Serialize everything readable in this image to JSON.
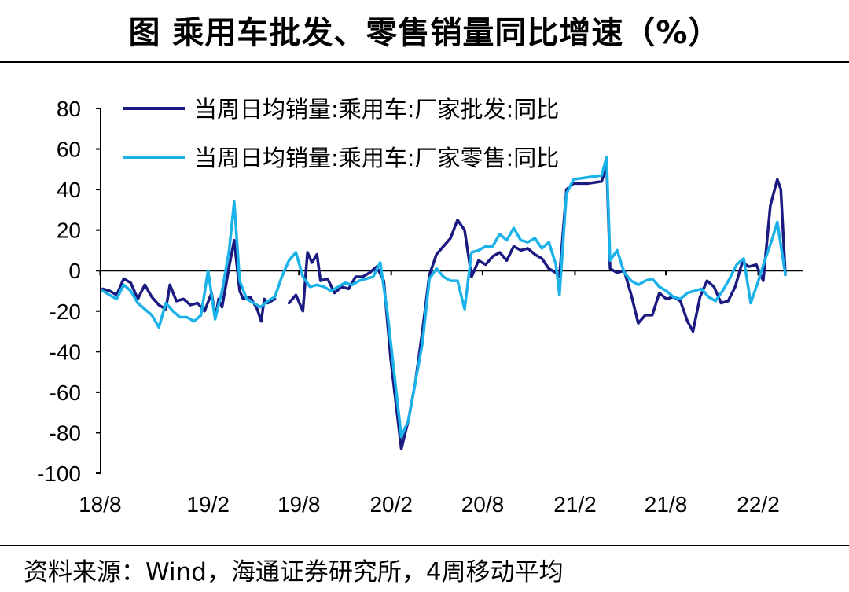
{
  "title": "图  乘用车批发、零售销量同比增速（%）",
  "source": "资料来源：Wind，海通证券研究所，4周移动平均",
  "colors": {
    "wholesale": "#1a1a80",
    "retail": "#1ab2e8",
    "axis": "#000000"
  },
  "chart_data": {
    "type": "line",
    "ylim": [
      -100,
      80
    ],
    "yticks": [
      80,
      60,
      40,
      20,
      0,
      -20,
      -40,
      -60,
      -80,
      -100
    ],
    "xlim": [
      "2018-07-16",
      "2022-05-16"
    ],
    "xticks": [
      {
        "label": "18/8",
        "date": "2018-07-15"
      },
      {
        "label": "19/2",
        "date": "2019-02-15"
      },
      {
        "label": "19/8",
        "date": "2019-08-15"
      },
      {
        "label": "20/2",
        "date": "2020-02-15"
      },
      {
        "label": "20/8",
        "date": "2020-08-15"
      },
      {
        "label": "21/2",
        "date": "2021-02-15"
      },
      {
        "label": "21/8",
        "date": "2021-08-15"
      },
      {
        "label": "22/2",
        "date": "2022-02-15"
      }
    ],
    "legend_position": "top-left",
    "grid": false,
    "series": [
      {
        "name": "当周日均销量:乘用车:厂家批发:同比",
        "color": "#1a1a80",
        "segments": [
          [
            [
              "2018-07-20",
              -9
            ],
            [
              "2018-08-03",
              -10
            ],
            [
              "2018-08-17",
              -12
            ],
            [
              "2018-08-31",
              -4
            ],
            [
              "2018-09-14",
              -6
            ],
            [
              "2018-09-28",
              -14
            ],
            [
              "2018-10-12",
              -7
            ],
            [
              "2018-10-26",
              -13
            ],
            [
              "2018-11-09",
              -17
            ],
            [
              "2018-11-23",
              -19
            ],
            [
              "2018-12-01",
              -7
            ],
            [
              "2018-12-14",
              -15
            ],
            [
              "2018-12-28",
              -14
            ],
            [
              "2019-01-11",
              -17
            ],
            [
              "2019-01-25",
              -16
            ],
            [
              "2019-02-08",
              -20
            ],
            [
              "2019-02-22",
              -11
            ],
            [
              "2019-03-02",
              -23
            ],
            [
              "2019-03-08",
              -14
            ],
            [
              "2019-03-15",
              -18
            ],
            [
              "2019-03-29",
              2
            ],
            [
              "2019-04-08",
              15
            ],
            [
              "2019-04-19",
              -10
            ],
            [
              "2019-04-26",
              -14
            ],
            [
              "2019-05-10",
              -13
            ],
            [
              "2019-05-24",
              -19
            ],
            [
              "2019-06-01",
              -25
            ],
            [
              "2019-06-07",
              -14
            ],
            [
              "2019-06-14",
              -16
            ],
            [
              "2019-06-28",
              -14
            ]
          ],
          [
            [
              "2019-07-26",
              -16
            ],
            [
              "2019-08-09",
              -12
            ],
            [
              "2019-08-23",
              -20
            ],
            [
              "2019-09-01",
              9
            ],
            [
              "2019-09-10",
              4
            ],
            [
              "2019-09-20",
              8
            ],
            [
              "2019-09-27",
              -5
            ],
            [
              "2019-10-11",
              -4
            ],
            [
              "2019-10-25",
              -11
            ],
            [
              "2019-11-08",
              -8
            ],
            [
              "2019-11-22",
              -9
            ],
            [
              "2019-12-06",
              -3
            ],
            [
              "2019-12-20",
              -3
            ],
            [
              "2020-01-03",
              -1
            ],
            [
              "2020-01-17",
              2
            ],
            [
              "2020-01-31",
              -5
            ],
            [
              "2020-02-14",
              -44
            ],
            [
              "2020-03-06",
              -88
            ],
            [
              "2020-03-20",
              -74
            ],
            [
              "2020-04-03",
              -55
            ],
            [
              "2020-04-17",
              -30
            ],
            [
              "2020-05-01",
              -2
            ],
            [
              "2020-05-15",
              8
            ],
            [
              "2020-05-29",
              12
            ],
            [
              "2020-06-12",
              16
            ],
            [
              "2020-06-26",
              25
            ],
            [
              "2020-07-10",
              20
            ],
            [
              "2020-07-24",
              -3
            ],
            [
              "2020-08-07",
              5
            ],
            [
              "2020-08-21",
              3
            ],
            [
              "2020-09-04",
              7
            ],
            [
              "2020-09-18",
              9
            ],
            [
              "2020-10-02",
              5
            ],
            [
              "2020-10-16",
              12
            ],
            [
              "2020-10-30",
              10
            ],
            [
              "2020-11-13",
              11
            ],
            [
              "2020-11-27",
              8
            ],
            [
              "2020-12-11",
              6
            ],
            [
              "2020-12-25",
              1
            ],
            [
              "2021-01-08",
              -1
            ],
            [
              "2021-01-15",
              -3
            ],
            [
              "2021-01-29",
              40
            ],
            [
              "2021-02-12",
              43
            ],
            [
              "2021-03-12",
              43
            ],
            [
              "2021-04-09",
              44
            ],
            [
              "2021-04-19",
              52
            ],
            [
              "2021-04-26",
              1
            ],
            [
              "2021-05-10",
              -1
            ],
            [
              "2021-05-24",
              0
            ],
            [
              "2021-06-07",
              -12
            ],
            [
              "2021-06-21",
              -26
            ],
            [
              "2021-07-05",
              -22
            ],
            [
              "2021-07-19",
              -22
            ],
            [
              "2021-08-02",
              -11
            ],
            [
              "2021-08-16",
              -14
            ],
            [
              "2021-08-30",
              -13
            ],
            [
              "2021-09-13",
              -15
            ],
            [
              "2021-09-27",
              -25
            ],
            [
              "2021-10-08",
              -30
            ],
            [
              "2021-10-22",
              -13
            ],
            [
              "2021-11-05",
              -5
            ],
            [
              "2021-11-19",
              -8
            ],
            [
              "2021-12-03",
              -16
            ],
            [
              "2021-12-17",
              -15
            ],
            [
              "2021-12-31",
              -8
            ],
            [
              "2022-01-14",
              4
            ],
            [
              "2022-01-28",
              2
            ],
            [
              "2022-02-11",
              3
            ],
            [
              "2022-02-25",
              -5
            ],
            [
              "2022-03-11",
              32
            ],
            [
              "2022-03-25",
              45
            ],
            [
              "2022-04-01",
              40
            ],
            [
              "2022-04-10",
              -2
            ]
          ]
        ]
      },
      {
        "name": "当周日均销量:乘用车:厂家零售:同比",
        "color": "#1ab2e8",
        "segments": [
          [
            [
              "2018-07-20",
              -10
            ],
            [
              "2018-08-03",
              -12
            ],
            [
              "2018-08-17",
              -14
            ],
            [
              "2018-08-31",
              -7
            ],
            [
              "2018-09-14",
              -10
            ],
            [
              "2018-09-28",
              -16
            ],
            [
              "2018-10-12",
              -19
            ],
            [
              "2018-10-26",
              -22
            ],
            [
              "2018-11-09",
              -28
            ],
            [
              "2018-11-23",
              -16
            ],
            [
              "2018-12-07",
              -20
            ],
            [
              "2018-12-21",
              -23
            ],
            [
              "2019-01-04",
              -23
            ],
            [
              "2019-01-18",
              -25
            ],
            [
              "2019-02-01",
              -22
            ],
            [
              "2019-02-15",
              0
            ],
            [
              "2019-03-01",
              -24
            ],
            [
              "2019-03-15",
              -10
            ],
            [
              "2019-03-29",
              10
            ],
            [
              "2019-04-08",
              34
            ],
            [
              "2019-04-19",
              -5
            ],
            [
              "2019-05-03",
              -14
            ],
            [
              "2019-05-17",
              -16
            ],
            [
              "2019-05-31",
              -18
            ],
            [
              "2019-06-14",
              -15
            ],
            [
              "2019-06-28",
              -13
            ],
            [
              "2019-07-12",
              -3
            ],
            [
              "2019-07-26",
              5
            ],
            [
              "2019-08-09",
              9
            ],
            [
              "2019-08-23",
              -3
            ],
            [
              "2019-09-06",
              -8
            ],
            [
              "2019-09-20",
              -7
            ],
            [
              "2019-10-04",
              -8
            ],
            [
              "2019-10-18",
              -10
            ],
            [
              "2019-11-01",
              -8
            ],
            [
              "2019-11-15",
              -6
            ],
            [
              "2019-11-29",
              -7
            ],
            [
              "2019-12-13",
              -5
            ],
            [
              "2019-12-27",
              -4
            ],
            [
              "2020-01-10",
              -3
            ],
            [
              "2020-01-24",
              4
            ],
            [
              "2020-02-07",
              -20
            ],
            [
              "2020-03-06",
              -82
            ],
            [
              "2020-03-20",
              -74
            ],
            [
              "2020-04-03",
              -55
            ],
            [
              "2020-04-17",
              -36
            ],
            [
              "2020-05-01",
              -4
            ],
            [
              "2020-05-15",
              1
            ],
            [
              "2020-05-29",
              -3
            ],
            [
              "2020-06-12",
              -5
            ],
            [
              "2020-06-26",
              -5
            ],
            [
              "2020-07-10",
              -19
            ],
            [
              "2020-07-24",
              9
            ],
            [
              "2020-08-07",
              10
            ],
            [
              "2020-08-21",
              12
            ],
            [
              "2020-09-04",
              12
            ],
            [
              "2020-09-18",
              18
            ],
            [
              "2020-10-02",
              15
            ],
            [
              "2020-10-16",
              21
            ],
            [
              "2020-10-30",
              15
            ],
            [
              "2020-11-13",
              14
            ],
            [
              "2020-11-27",
              16
            ],
            [
              "2020-12-11",
              11
            ],
            [
              "2020-12-25",
              14
            ],
            [
              "2021-01-08",
              3
            ],
            [
              "2021-01-15",
              -12
            ],
            [
              "2021-01-29",
              38
            ],
            [
              "2021-02-12",
              45
            ],
            [
              "2021-03-12",
              46
            ],
            [
              "2021-04-09",
              47
            ],
            [
              "2021-04-19",
              56
            ],
            [
              "2021-04-26",
              5
            ],
            [
              "2021-05-10",
              10
            ],
            [
              "2021-05-24",
              -1
            ],
            [
              "2021-06-07",
              -5
            ],
            [
              "2021-06-21",
              -7
            ],
            [
              "2021-07-05",
              -5
            ],
            [
              "2021-07-19",
              -4
            ],
            [
              "2021-08-02",
              -8
            ],
            [
              "2021-08-16",
              -10
            ],
            [
              "2021-08-30",
              -13
            ],
            [
              "2021-09-13",
              -14
            ],
            [
              "2021-09-27",
              -11
            ],
            [
              "2021-10-11",
              -10
            ],
            [
              "2021-10-25",
              -9
            ],
            [
              "2021-11-08",
              -13
            ],
            [
              "2021-11-22",
              -15
            ],
            [
              "2021-12-06",
              -10
            ],
            [
              "2021-12-20",
              -4
            ],
            [
              "2022-01-03",
              3
            ],
            [
              "2022-01-17",
              6
            ],
            [
              "2022-01-31",
              -16
            ],
            [
              "2022-02-14",
              -6
            ],
            [
              "2022-02-28",
              5
            ],
            [
              "2022-03-14",
              15
            ],
            [
              "2022-03-25",
              24
            ],
            [
              "2022-04-10",
              -2
            ]
          ]
        ]
      }
    ]
  }
}
